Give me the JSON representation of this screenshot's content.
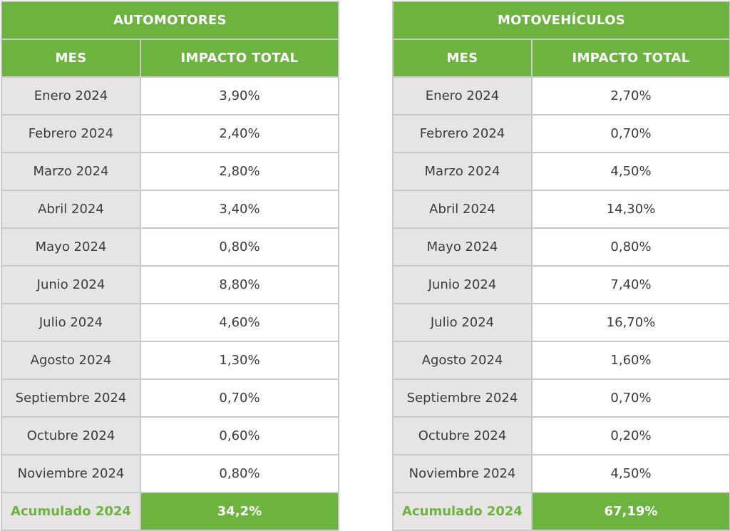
{
  "colors": {
    "header_green": "#6db33f",
    "label_gray": "#e6e4e4",
    "border_gray": "#c9c9c9",
    "text_dark": "#3b3b3b",
    "text_white": "#ffffff"
  },
  "tables": [
    {
      "title": "AUTOMOTORES",
      "col_mes": "MES",
      "col_impacto": "IMPACTO TOTAL",
      "rows": [
        {
          "mes": "Enero 2024",
          "impacto": "3,90%"
        },
        {
          "mes": "Febrero 2024",
          "impacto": "2,40%"
        },
        {
          "mes": "Marzo 2024",
          "impacto": "2,80%"
        },
        {
          "mes": "Abril 2024",
          "impacto": "3,40%"
        },
        {
          "mes": "Mayo 2024",
          "impacto": "0,80%"
        },
        {
          "mes": "Junio 2024",
          "impacto": "8,80%"
        },
        {
          "mes": "Julio 2024",
          "impacto": "4,60%"
        },
        {
          "mes": "Agosto 2024",
          "impacto": "1,30%"
        },
        {
          "mes": "Septiembre 2024",
          "impacto": "0,70%"
        },
        {
          "mes": "Octubre 2024",
          "impacto": "0,60%"
        },
        {
          "mes": "Noviembre 2024",
          "impacto": "0,80%"
        }
      ],
      "total_label": "Acumulado 2024",
      "total_value": "34,2%"
    },
    {
      "title": "MOTOVEHÍCULOS",
      "col_mes": "MES",
      "col_impacto": "IMPACTO TOTAL",
      "rows": [
        {
          "mes": "Enero 2024",
          "impacto": "2,70%"
        },
        {
          "mes": "Febrero 2024",
          "impacto": "0,70%"
        },
        {
          "mes": "Marzo 2024",
          "impacto": "4,50%"
        },
        {
          "mes": "Abril 2024",
          "impacto": "14,30%"
        },
        {
          "mes": "Mayo 2024",
          "impacto": "0,80%"
        },
        {
          "mes": "Junio 2024",
          "impacto": "7,40%"
        },
        {
          "mes": "Julio 2024",
          "impacto": "16,70%"
        },
        {
          "mes": "Agosto 2024",
          "impacto": "1,60%"
        },
        {
          "mes": "Septiembre 2024",
          "impacto": "0,70%"
        },
        {
          "mes": "Octubre 2024",
          "impacto": "0,20%"
        },
        {
          "mes": "Noviembre 2024",
          "impacto": "4,50%"
        }
      ],
      "total_label": "Acumulado 2024",
      "total_value": "67,19%"
    }
  ]
}
